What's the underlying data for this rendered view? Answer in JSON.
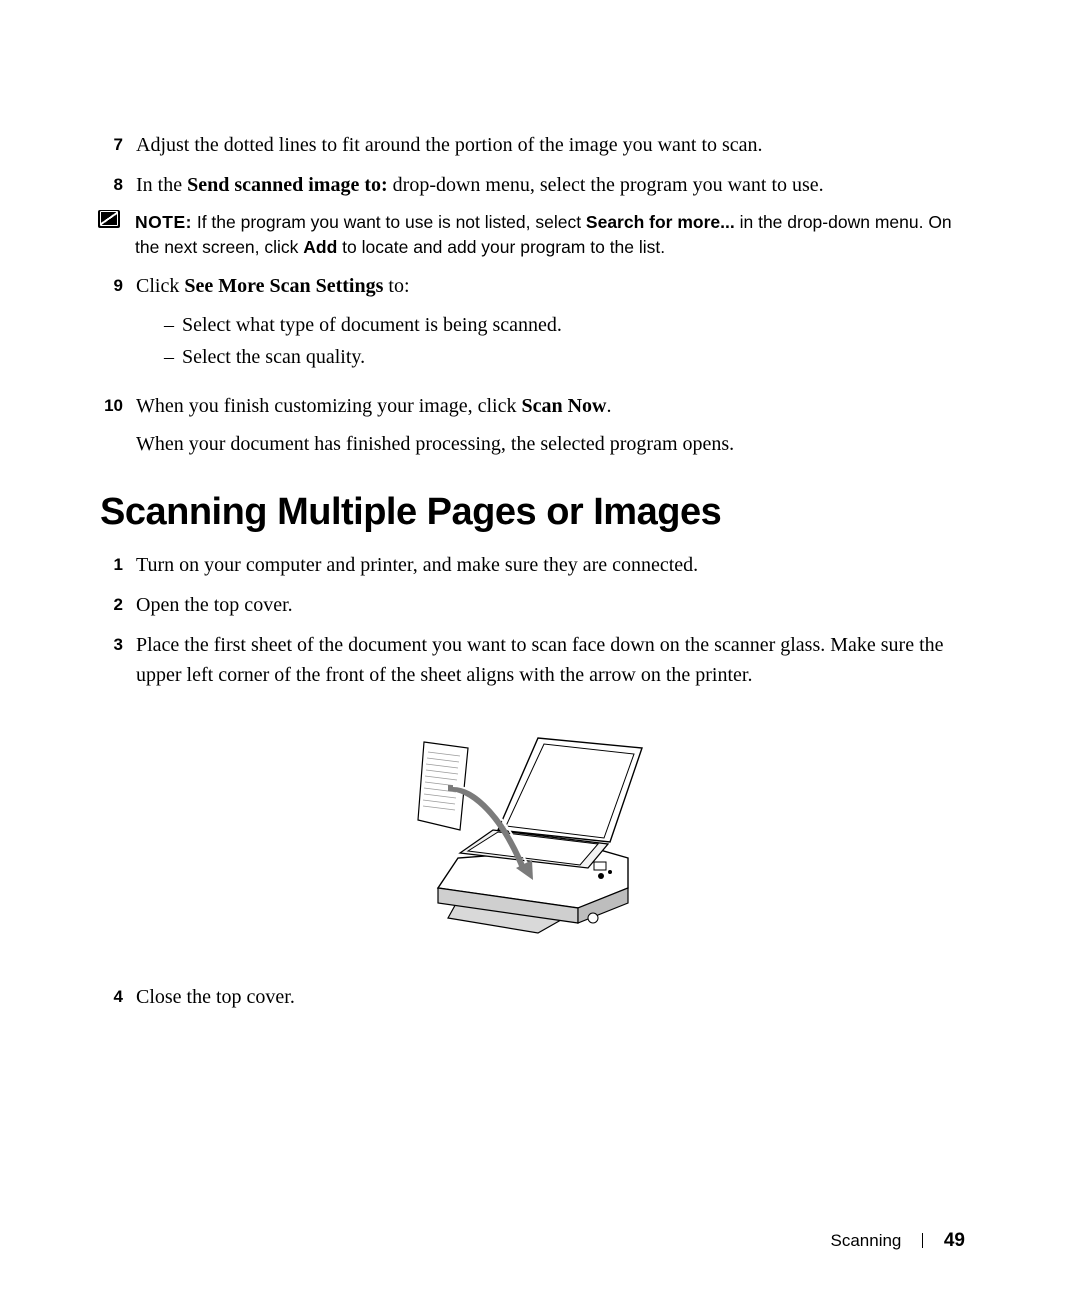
{
  "steps_top": [
    {
      "num": "7",
      "html": "Adjust the dotted lines to fit around the portion of the image you want to scan."
    },
    {
      "num": "8",
      "html": "In the <b>Send scanned image to:</b> drop-down menu, select the program you want to use."
    }
  ],
  "note": {
    "label": "NOTE:",
    "html": "If the program you want to use is not listed, select <b>Search for more...</b> in the drop-down menu. On the next screen, click <b>Add</b> to locate and add your program to the list."
  },
  "step9": {
    "num": "9",
    "html": "Click <b>See More Scan Settings</b> to:",
    "sub": [
      "Select what type of document is being scanned.",
      "Select the scan quality."
    ]
  },
  "step10": {
    "num": "10",
    "html": "When you finish customizing your image, click <b>Scan Now</b>.",
    "extra": "When your document has finished processing, the selected program opens."
  },
  "heading": "Scanning Multiple Pages or Images",
  "steps_bottom": [
    {
      "num": "1",
      "html": "Turn on your computer and printer, and make sure they are connected."
    },
    {
      "num": "2",
      "html": "Open the top cover."
    },
    {
      "num": "3",
      "html": "Place the first sheet of the document you want to scan face down on the scanner glass. Make sure the upper left corner of the front of the sheet aligns with the arrow on the printer."
    },
    {
      "num": "4",
      "html": "Close the top cover."
    }
  ],
  "footer": {
    "section": "Scanning",
    "page": "49"
  },
  "colors": {
    "text": "#000000",
    "bg": "#ffffff"
  }
}
